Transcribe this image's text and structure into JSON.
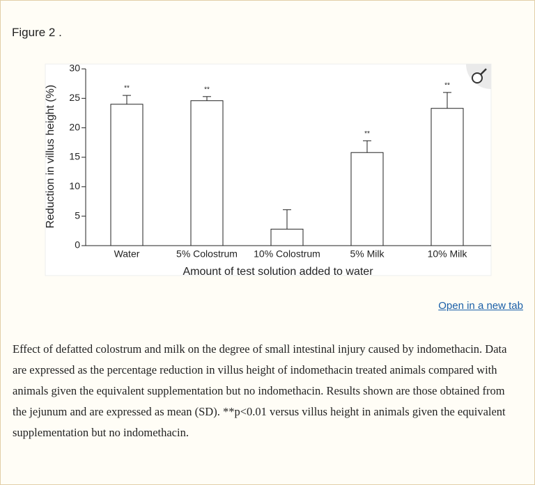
{
  "figure_label": "Figure 2 .",
  "chart_data": {
    "type": "bar",
    "ylabel": "Reduction in villus height (%)",
    "xlabel": "Amount of test solution added to water",
    "categories": [
      "Water",
      "5% Colostrum",
      "10% Colostrum",
      "5% Milk",
      "10% Milk"
    ],
    "values": [
      24,
      24.6,
      2.8,
      15.8,
      23.3
    ],
    "errors": [
      1.5,
      0.7,
      3.3,
      2,
      2.7
    ],
    "annotations": [
      "**",
      "**",
      null,
      "**",
      "**"
    ],
    "color": "#ffffff",
    "ylim": [
      0,
      30
    ],
    "yticks": [
      0,
      5,
      10,
      15,
      20,
      25,
      30
    ]
  },
  "link": "Open in a new tab",
  "caption": "Effect of defatted colostrum and milk on the degree of small intestinal injury caused by indomethacin. Data are expressed as the percentage reduction in villus height of indomethacin treated animals compared with animals given the equivalent supplementation but no indomethacin. Results shown are those obtained from the jejunum and are expressed as mean (SD). **p<0.01 versus villus height in animals given the equivalent supplementation but no indomethacin."
}
